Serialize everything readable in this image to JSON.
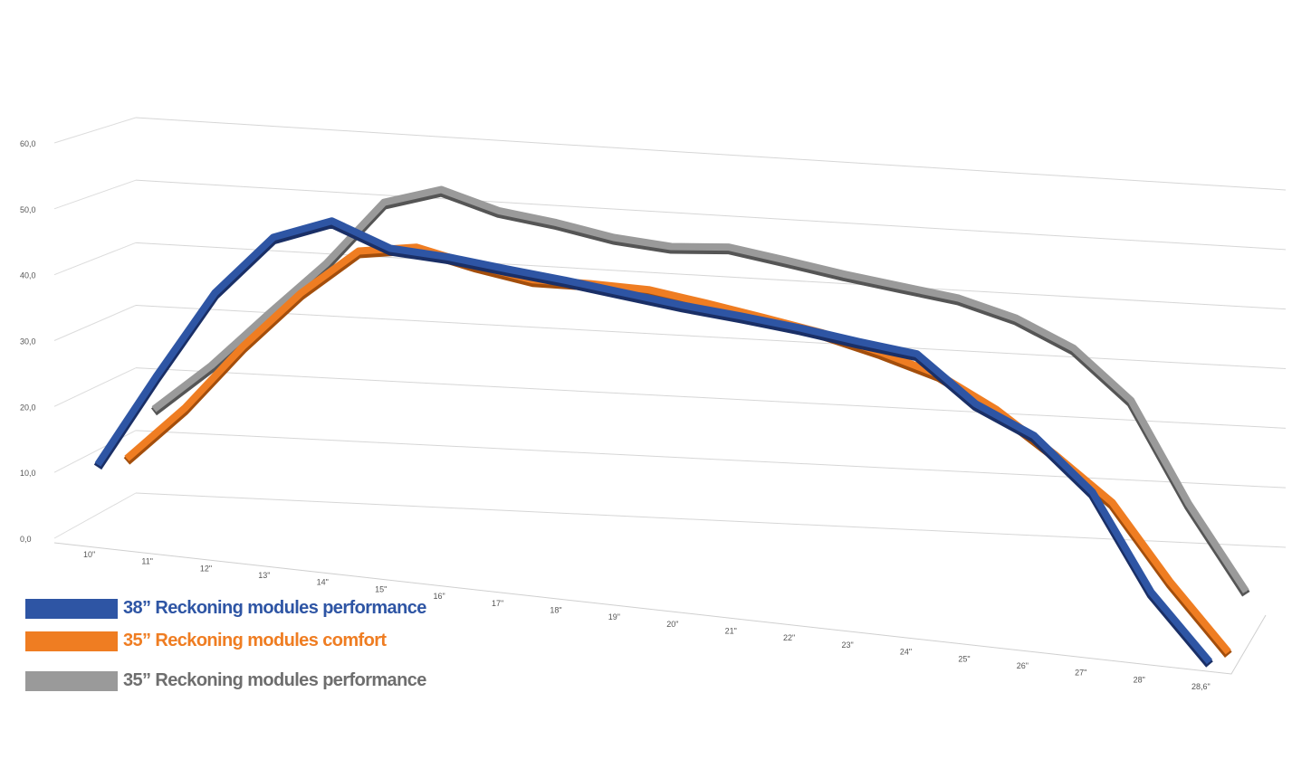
{
  "chart_data": {
    "type": "line",
    "title": "",
    "xlabel": "",
    "ylabel": "",
    "categories": [
      "10\"",
      "11\"",
      "12\"",
      "13\"",
      "14\"",
      "15\"",
      "16\"",
      "17\"",
      "18\"",
      "19\"",
      "20\"",
      "21\"",
      "22\"",
      "23\"",
      "24\"",
      "25\"",
      "26\"",
      "27\"",
      "28\"",
      "28,6\""
    ],
    "yticks": [
      "0,0",
      "10,0",
      "20,0",
      "30,0",
      "40,0",
      "50,0",
      "60,0"
    ],
    "ylim": [
      0,
      60
    ],
    "grid": true,
    "legend_position": "bottom-left",
    "series": [
      {
        "name": "38” Reckoning modules performance",
        "color": "#2e55a4",
        "edge": "#1a2f66",
        "values": [
          11.2,
          26.0,
          40.5,
          51.0,
          55.5,
          53.0,
          53.5,
          53.5,
          53.6,
          53.5,
          53.4,
          53.6,
          53.6,
          53.3,
          53.2,
          46.0,
          42.0,
          33.0,
          15.0,
          2.5
        ]
      },
      {
        "name": "35” Reckoning modules comfort",
        "color": "#ef7d22",
        "edge": "#a34e0c",
        "values": [
          11.0,
          20.0,
          31.0,
          41.0,
          49.5,
          52.0,
          51.0,
          50.5,
          51.8,
          52.8,
          52.5,
          52.0,
          51.4,
          50.0,
          48.0,
          43.5,
          37.0,
          29.5,
          15.5,
          3.0
        ]
      },
      {
        "name": "35” Reckoning modules performance",
        "color": "#9a9a9a",
        "edge": "#555555",
        "values": [
          13.0,
          21.0,
          30.5,
          40.0,
          51.5,
          55.5,
          54.0,
          54.0,
          53.5,
          54.0,
          56.0,
          55.8,
          55.5,
          55.5,
          55.5,
          54.0,
          50.5,
          42.5,
          24.0,
          8.0
        ]
      }
    ]
  }
}
